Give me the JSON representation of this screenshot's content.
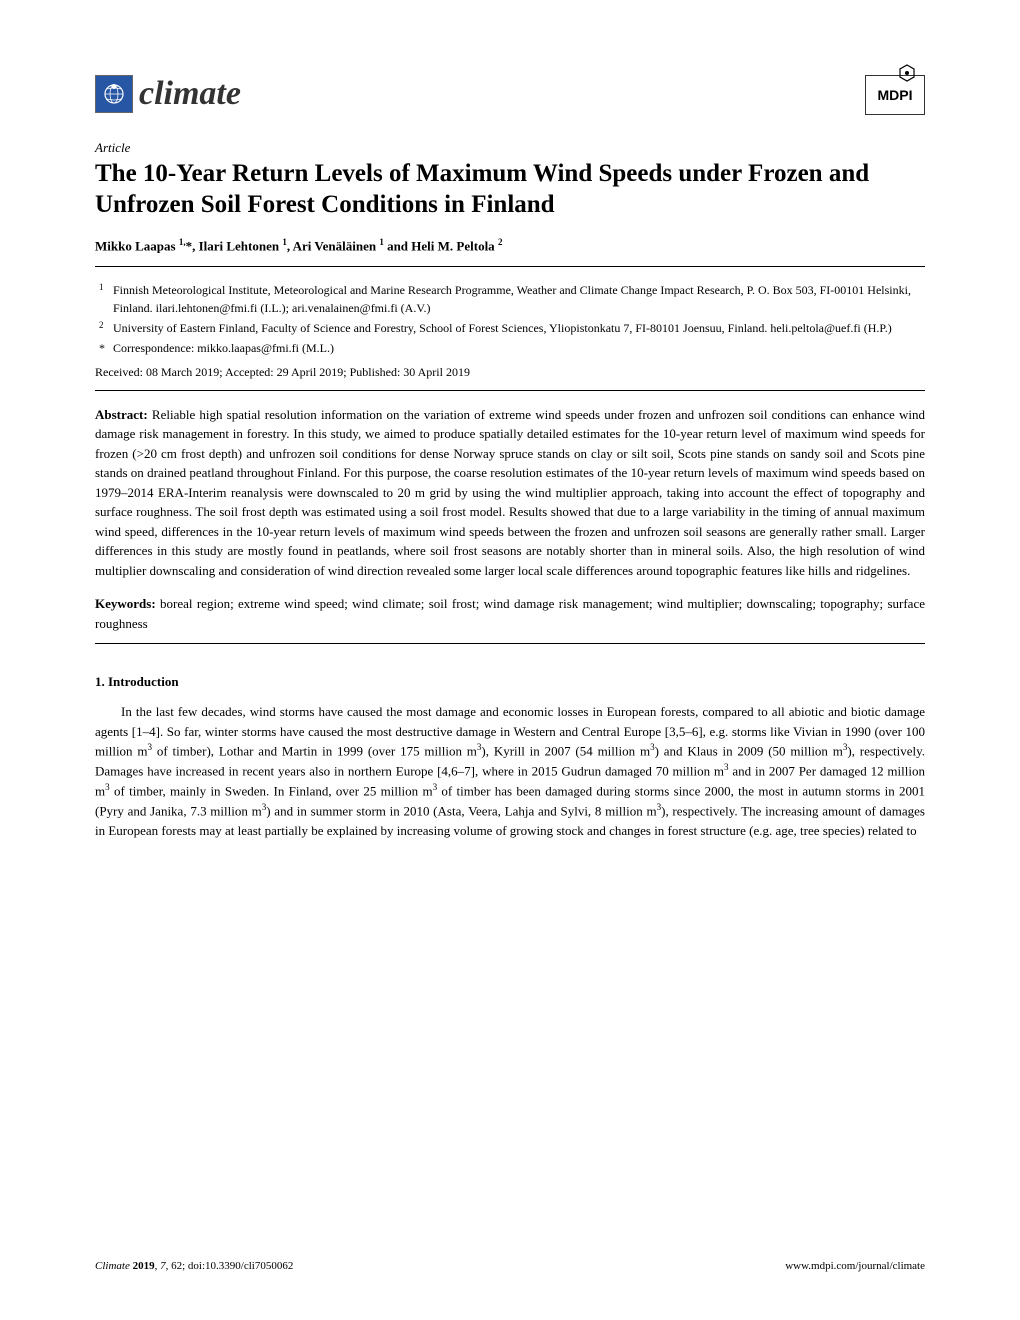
{
  "journal": {
    "name": "climate",
    "publisher": "MDPI"
  },
  "article_type": "Article",
  "title": "The 10-Year Return Levels of Maximum Wind Speeds under Frozen and Unfrozen Soil Forest Conditions in Finland",
  "authors_html": "Mikko Laapas <sup>1,</sup>*, Ilari Lehtonen <sup>1</sup>, Ari Venäläinen <sup>1</sup> and Heli M. Peltola <sup>2</sup>",
  "affiliations": {
    "a1_marker": "1",
    "a1_text": "Finnish Meteorological Institute, Meteorological and Marine Research Programme, Weather and Climate Change Impact Research, P. O. Box 503, FI-00101 Helsinki, Finland. ilari.lehtonen@fmi.fi (I.L.); ari.venalainen@fmi.fi (A.V.)",
    "a2_marker": "2",
    "a2_text": "University of Eastern Finland, Faculty of Science and Forestry, School of Forest Sciences, Yliopistonkatu 7, FI-80101 Joensuu, Finland. heli.peltola@uef.fi (H.P.)",
    "corr_marker": "*",
    "corr_text": "Correspondence: mikko.laapas@fmi.fi (M.L.)"
  },
  "dates": "Received: 08 March 2019; Accepted: 29 April 2019; Published: 30 April 2019",
  "abstract_label": "Abstract:",
  "abstract_text": " Reliable high spatial resolution information on the variation of extreme wind speeds under frozen and unfrozen soil conditions can enhance wind damage risk management in forestry. In this study, we aimed to produce spatially detailed estimates for the 10-year return level of maximum wind speeds for frozen (>20 cm frost depth) and unfrozen soil conditions for dense Norway spruce stands on clay or silt soil, Scots pine stands on sandy soil and Scots pine stands on drained peatland throughout Finland. For this purpose, the coarse resolution estimates of the 10-year return levels of maximum wind speeds based on 1979–2014 ERA-Interim reanalysis were downscaled to 20 m grid by using the wind multiplier approach, taking into account the effect of topography and surface roughness. The soil frost depth was estimated using a soil frost model. Results showed that due to a large variability in the timing of annual maximum wind speed, differences in the 10-year return levels of maximum wind speeds between the frozen and unfrozen soil seasons are generally rather small. Larger differences in this study are mostly found in peatlands, where soil frost seasons are notably shorter than in mineral soils. Also, the high resolution of wind multiplier downscaling and consideration of wind direction revealed some larger local scale differences around topographic features like hills and ridgelines.",
  "keywords_label": "Keywords:",
  "keywords_text": " boreal region; extreme wind speed; wind climate; soil frost; wind damage risk management; wind multiplier; downscaling; topography; surface roughness",
  "section1_title": "1. Introduction",
  "body_html": "In the last few decades, wind storms have caused the most damage and economic losses in European forests, compared to all abiotic and biotic damage agents [1–4]. So far, winter storms have caused the most destructive damage in Western and Central Europe [3,5–6], e.g. storms like Vivian in 1990 (over 100 million m<sup>3</sup> of timber), Lothar and Martin in 1999 (over 175 million m<sup>3</sup>), Kyrill in 2007 (54 million m<sup>3</sup>) and Klaus in 2009 (50 million m<sup>3</sup>), respectively. Damages have increased in recent years also in northern Europe [4,6–7], where in 2015 Gudrun damaged 70 million m<sup>3</sup> and in 2007 Per damaged 12 million m<sup>3</sup> of timber, mainly in Sweden. In Finland, over 25 million m<sup>3</sup> of timber has been damaged during storms since 2000, the most in autumn storms in 2001 (Pyry and Janika, 7.3 million m<sup>3</sup>) and in summer storm in 2010 (Asta, Veera, Lahja and Sylvi, 8 million m<sup>3</sup>), respectively. The increasing amount of damages in European forests may at least partially be explained by increasing volume of growing stock and changes in forest structure (e.g. age, tree species) related to",
  "footer": {
    "left_journal": "Climate",
    "left_year": "2019",
    "left_vol": "7",
    "left_page": "62",
    "left_doi": "doi:10.3390/cli7050062",
    "right": "www.mdpi.com/journal/climate"
  }
}
